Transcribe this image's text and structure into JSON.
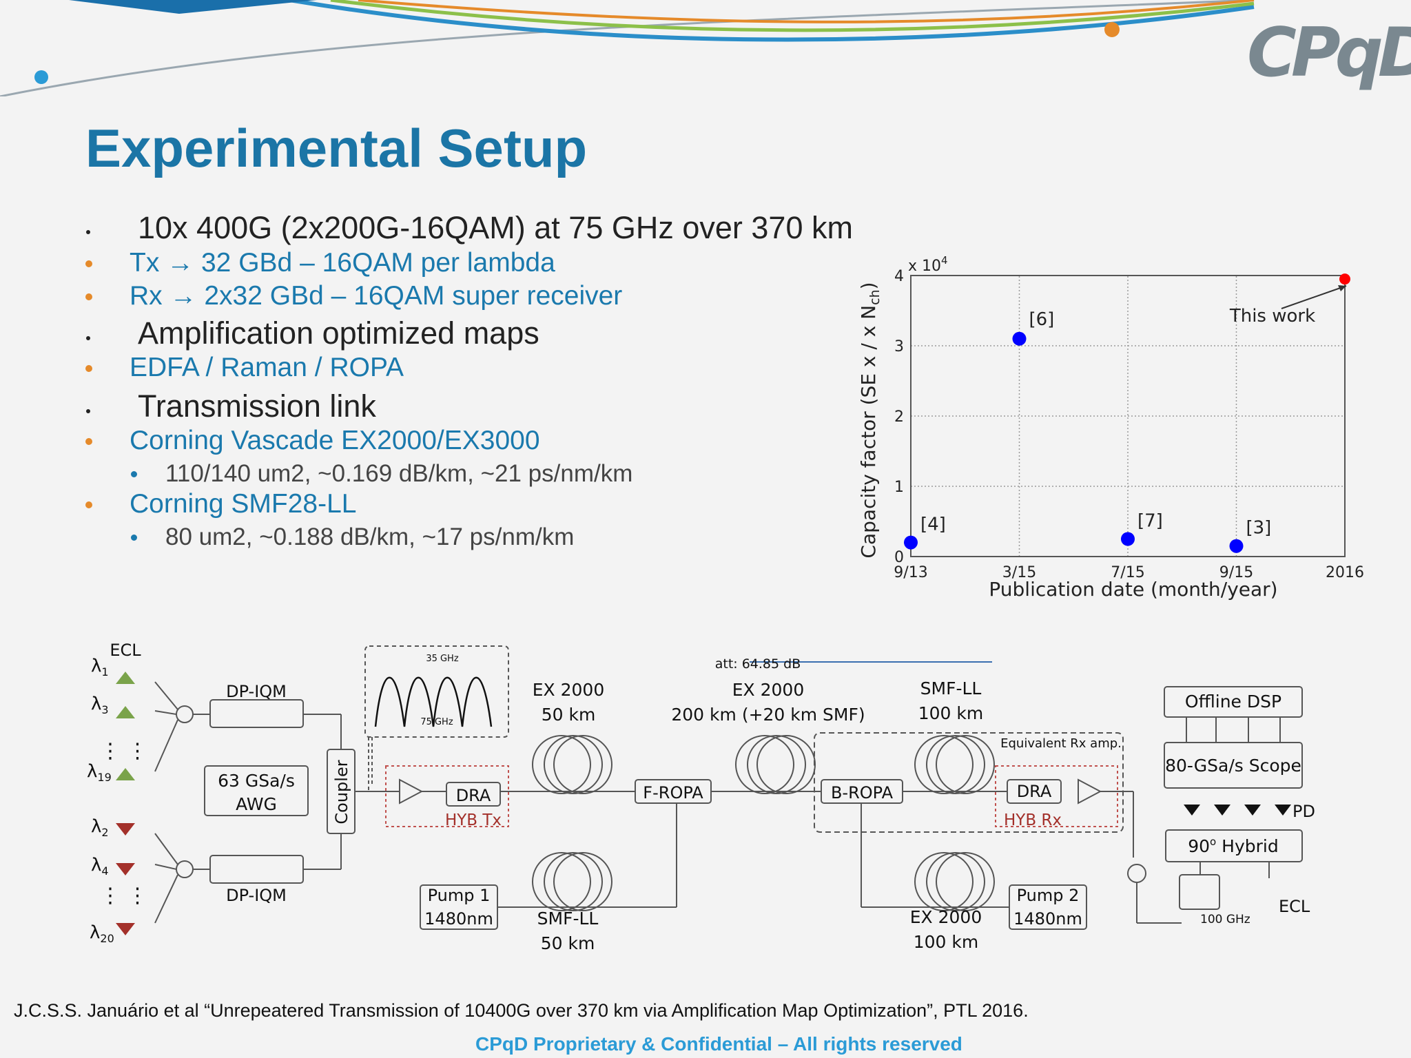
{
  "slide": {
    "title": "Experimental Setup",
    "logo_text": "CPqD",
    "bullets": [
      {
        "level": 1,
        "text": "10x 400G (2x200G-16QAM) at 75 GHz over 370 km"
      },
      {
        "level": 2,
        "text": "Tx → 32 GBd – 16QAM per lambda"
      },
      {
        "level": 2,
        "text": "Rx → 2x32 GBd – 16QAM super receiver"
      },
      {
        "level": 1,
        "text": "Amplification optimized maps"
      },
      {
        "level": 2,
        "text": "EDFA / Raman / ROPA"
      },
      {
        "level": 1,
        "text": "Transmission link"
      },
      {
        "level": 2,
        "text": "Corning Vascade EX2000/EX3000"
      },
      {
        "level": 3,
        "text": "110/140 um2, ~0.169 dB/km, ~21 ps/nm/km"
      },
      {
        "level": 2,
        "text": "Corning SMF28-LL"
      },
      {
        "level": 3,
        "text": "80 um2, ~0.188 dB/km, ~17 ps/nm/km"
      }
    ],
    "reference": "J.C.S.S. Januário et al “Unrepeatered Transmission of 10400G over 370 km via Amplification Map Optimization”, PTL 2016.",
    "confidential": "CPqD Proprietary & Confidential – All rights reserved"
  },
  "chart_data": {
    "type": "scatter",
    "xlabel": "Publication date (month/year)",
    "ylabel": "Capacity factor (SE x / x N",
    "ylabel_sub": "ch",
    "ylabel_end": ")",
    "y_multiplier": "x 10",
    "y_multiplier_exp": "4",
    "ylim": [
      0,
      4
    ],
    "y_ticks": [
      "0",
      "1",
      "2",
      "3",
      "4"
    ],
    "x_ticks": [
      "9/13",
      "3/15",
      "7/15",
      "9/15",
      "2016"
    ],
    "grid": true,
    "points": [
      {
        "x": "9/13",
        "y": 0.2,
        "label": "[4]",
        "color": "#0000ff"
      },
      {
        "x": "3/15",
        "y": 3.1,
        "label": "[6]",
        "color": "#0000ff"
      },
      {
        "x": "7/15",
        "y": 0.25,
        "label": "[7]",
        "color": "#0000ff"
      },
      {
        "x": "9/15",
        "y": 0.15,
        "label": "[3]",
        "color": "#0000ff"
      },
      {
        "x": "2016",
        "y": 3.95,
        "label": "This work",
        "color": "#ff0000"
      }
    ]
  },
  "diagram": {
    "ecl": "ECL",
    "lambdas_odd": [
      "λ",
      "λ",
      "λ"
    ],
    "lambda_subs_odd": [
      "1",
      "3",
      "19"
    ],
    "lambda_subs_even": [
      "2",
      "4",
      "20"
    ],
    "lambda": "λ",
    "dpiqm": "DP-IQM",
    "awg_line1": "63 GSa/s",
    "awg_line2": "AWG",
    "coupler": "Coupler",
    "spectrum_35": "35 GHz",
    "spectrum_75": "75 GHz",
    "att": "att: 64.85 dB",
    "ex2000_50_line1": "EX 2000",
    "ex2000_50_line2": "50 km",
    "ex2000_200_line1": "EX 2000",
    "ex2000_200_line2": "200 km (+20 km SMF)",
    "smfll_100_line1": "SMF-LL",
    "smfll_100_line2": "100 km",
    "dra": "DRA",
    "hyb_tx": "HYB Tx",
    "hyb_rx": "HYB Rx",
    "f_ropa": "F-ROPA",
    "b_ropa": "B-ROPA",
    "equiv_rx": "Equivalent Rx amp.",
    "pump1_line1": "Pump 1",
    "pump1_line2": "1480nm",
    "pump2_line1": "Pump 2",
    "pump2_line2": "1480nm",
    "smfll_50_line1": "SMF-LL",
    "smfll_50_line2": "50 km",
    "ex2000_100_line1": "EX 2000",
    "ex2000_100_line2": "100 km",
    "offline_dsp": "Offline DSP",
    "scope": "80-GSa/s Scope",
    "pd": "PD",
    "hybrid": "90",
    "hybrid_sup": "o",
    "hybrid_rest": " Hybrid",
    "filter_100": "100 GHz",
    "ecl_rx": "ECL"
  }
}
